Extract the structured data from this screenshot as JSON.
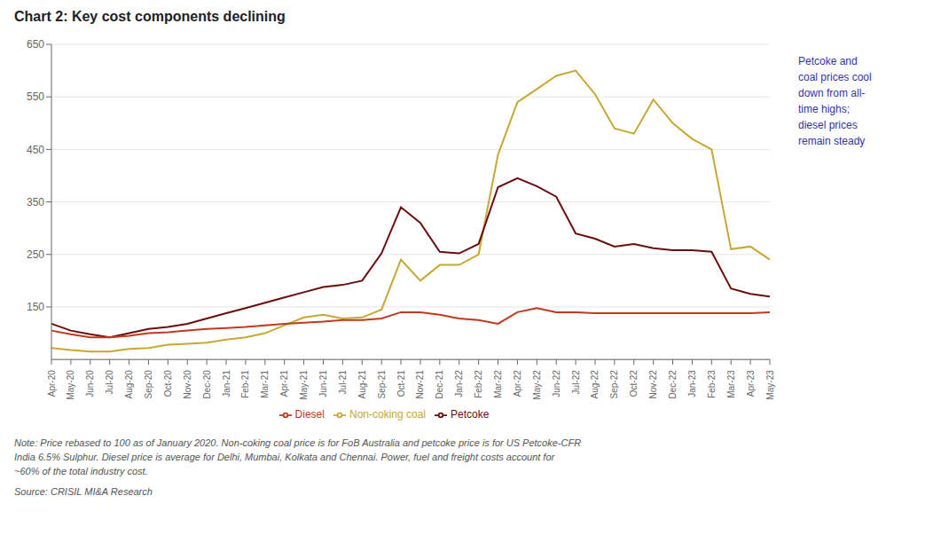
{
  "chart_data": {
    "type": "line",
    "title": "Chart 2: Key cost components declining",
    "annotation": "Petcoke and\ncoal prices cool\ndown from all-\ntime highs;\ndiesel prices\nremain steady",
    "annotation_color": "#3333aa",
    "note": "Note: Price rebased to 100 as of January 2020. Non-coking coal price is for FoB Australia and petcoke price is for US Petcoke-CFR\nIndia 6.5% Sulphur. Diesel price is average for Delhi, Mumbai, Kolkata and Chennai. Power, fuel and freight costs account for\n~60% of the total industry cost.",
    "source": "Source: CRISIL MI&A Research",
    "categories": [
      "Apr-20",
      "May-20",
      "Jun-20",
      "Jul-20",
      "Aug-20",
      "Sep-20",
      "Oct-20",
      "Nov-20",
      "Dec-20",
      "Jan-21",
      "Feb-21",
      "Mar-21",
      "Apr-21",
      "May-21",
      "Jun-21",
      "Jul-21",
      "Aug-21",
      "Sep-21",
      "Oct-21",
      "Nov-21",
      "Dec-21",
      "Jan-22",
      "Feb-22",
      "Mar-22",
      "Apr-22",
      "May-22",
      "Jun-22",
      "Jul-22",
      "Aug-22",
      "Sep-22",
      "Oct-22",
      "Nov-22",
      "Dec-22",
      "Jan-23",
      "Feb-23",
      "Mar-23",
      "Apr-23",
      "May-23"
    ],
    "series": [
      {
        "name": "Non-coking coal",
        "color": "#C8A832",
        "values": [
          72,
          68,
          65,
          65,
          70,
          72,
          78,
          80,
          82,
          88,
          92,
          100,
          115,
          130,
          135,
          128,
          130,
          145,
          240,
          200,
          230,
          230,
          250,
          440,
          540,
          565,
          590,
          600,
          555,
          490,
          480,
          545,
          500,
          470,
          450,
          260,
          265,
          240
        ]
      },
      {
        "name": "Petcoke",
        "color": "#6B0D0D",
        "values": [
          118,
          105,
          98,
          92,
          100,
          108,
          112,
          118,
          128,
          138,
          148,
          158,
          168,
          178,
          188,
          192,
          200,
          252,
          340,
          310,
          255,
          252,
          270,
          378,
          395,
          380,
          360,
          290,
          280,
          265,
          270,
          262,
          258,
          258,
          255,
          185,
          175,
          170
        ]
      },
      {
        "name": "Diesel",
        "color": "#C0391B",
        "values": [
          105,
          98,
          92,
          92,
          95,
          100,
          102,
          105,
          108,
          110,
          112,
          115,
          118,
          120,
          122,
          125,
          125,
          128,
          140,
          140,
          135,
          128,
          125,
          118,
          140,
          148,
          140,
          140,
          138,
          138,
          138,
          138,
          138,
          138,
          138,
          138,
          138,
          140
        ]
      }
    ],
    "ylim": [
      50,
      650
    ],
    "yticks": [
      150,
      250,
      350,
      450,
      550,
      650
    ],
    "grid": true,
    "legend": "bottom"
  }
}
